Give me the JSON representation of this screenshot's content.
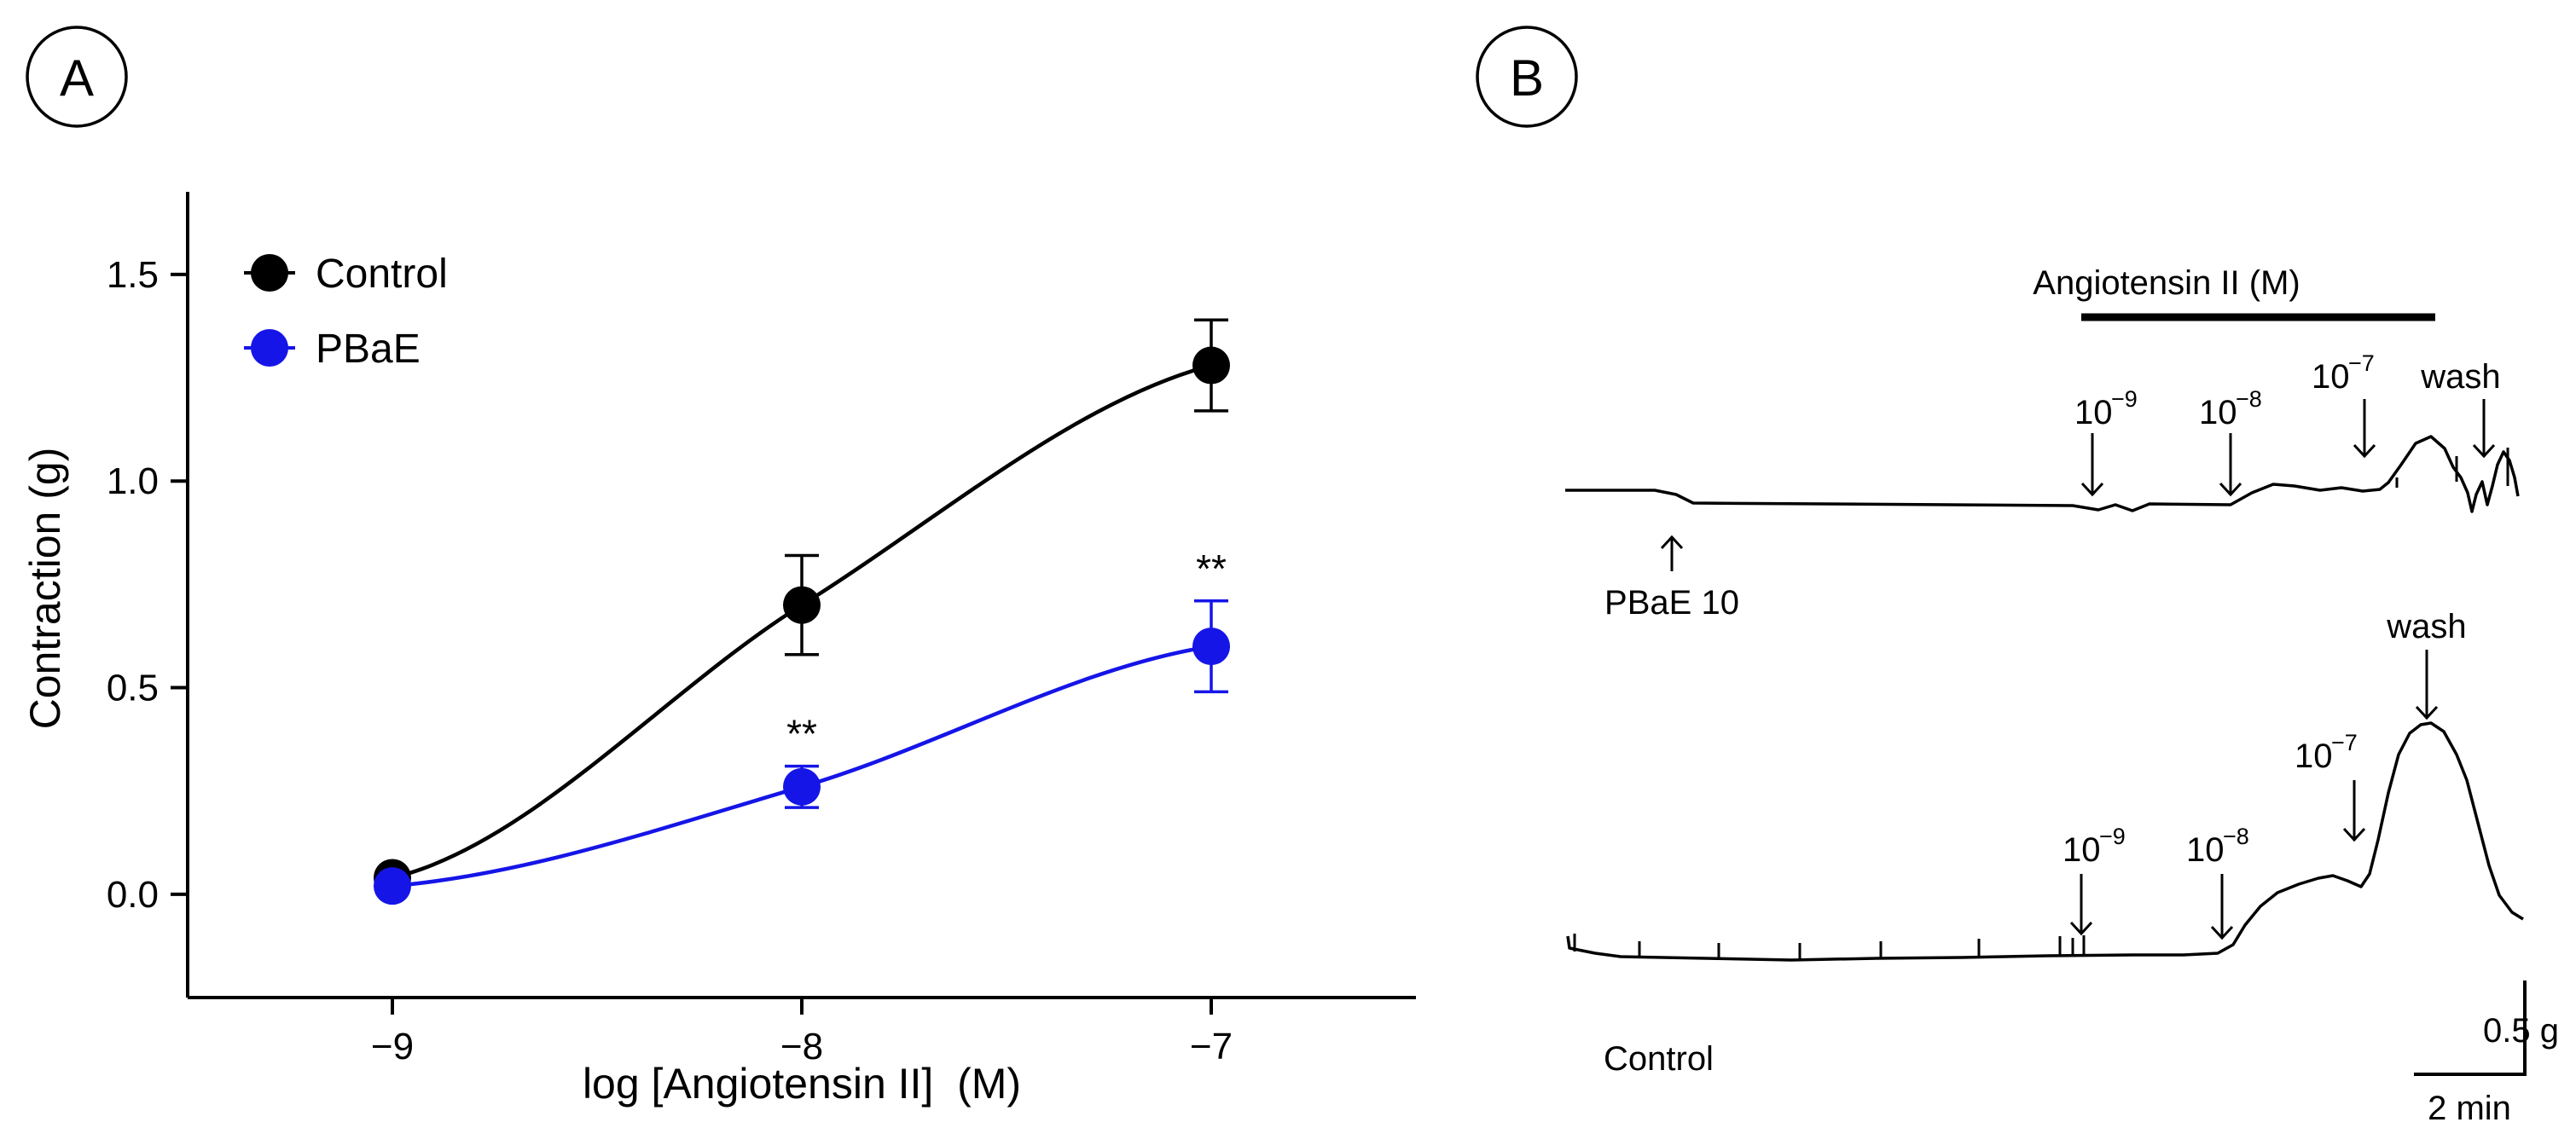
{
  "panels": {
    "a": {
      "label": "A"
    },
    "b": {
      "label": "B"
    }
  },
  "chart_data": {
    "type": "line",
    "xlabel": "log [Angiotensin II]  (M)",
    "ylabel": "Contraction (g)",
    "xlim": [
      -9.5,
      -6.5
    ],
    "ylim": [
      -0.25,
      1.7
    ],
    "x": [
      -9,
      -8,
      -7
    ],
    "xticks": [
      "−9",
      "−8",
      "−7"
    ],
    "yticks": [
      "0.0",
      "0.5",
      "1.0",
      "1.5"
    ],
    "legend_position": "top-left",
    "series": [
      {
        "name": "Control",
        "color": "#000000",
        "values": [
          0.04,
          0.7,
          1.28
        ],
        "errors": [
          0.0,
          0.12,
          0.11
        ],
        "significance": [
          "",
          "",
          ""
        ]
      },
      {
        "name": "PBaE",
        "color": "#1515e8",
        "values": [
          0.02,
          0.26,
          0.6
        ],
        "errors": [
          0.0,
          0.05,
          0.11
        ],
        "significance": [
          "",
          "**",
          "**"
        ]
      }
    ]
  },
  "traces": {
    "bar_label": "Angiotensin II (M)",
    "top": {
      "pbae_label": "PBaE 10",
      "wash_label": "wash",
      "doses": [
        "-9",
        "-8",
        "-7"
      ]
    },
    "bottom": {
      "label": "Control",
      "wash_label": "wash",
      "doses": [
        "-9",
        "-8",
        "-7"
      ]
    },
    "scale": {
      "force_label": "0.5 g",
      "time_label": "2 min"
    }
  }
}
